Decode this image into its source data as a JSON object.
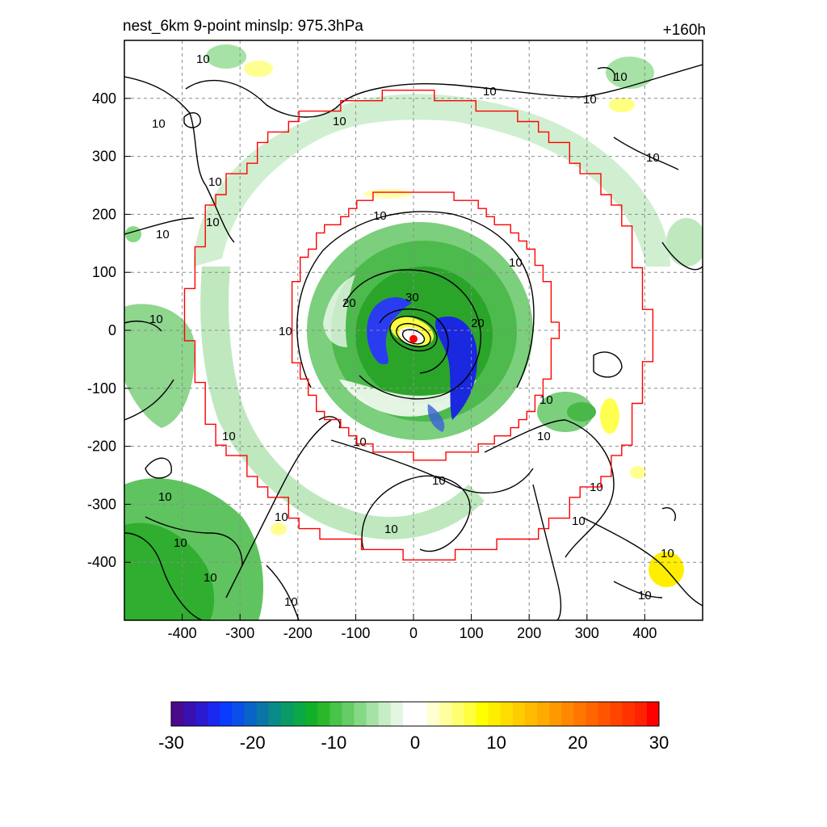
{
  "header": {
    "title_left": "nest_6km  9-point minslp: 975.3hPa",
    "title_right": "+160h"
  },
  "chart_data": {
    "type": "heatmap",
    "xlim": [
      -500,
      500
    ],
    "ylim": [
      -500,
      500
    ],
    "x_ticks": [
      -400,
      -300,
      -200,
      -100,
      0,
      100,
      200,
      300,
      400
    ],
    "y_ticks": [
      400,
      300,
      200,
      100,
      0,
      -100,
      -200,
      -300,
      -400
    ],
    "x_tick_labels": [
      "-400",
      "-300",
      "-200",
      "-100",
      "0",
      "100",
      "200",
      "300",
      "400"
    ],
    "y_tick_labels": [
      "400",
      "300",
      "200",
      "100",
      "0",
      "-100",
      "-200",
      "-300",
      "-400"
    ],
    "grid": "dashed",
    "colorbar": {
      "range": [
        -30,
        30
      ],
      "tick_values": [
        -30,
        -20,
        -10,
        0,
        10,
        20,
        30
      ],
      "tick_labels": [
        "-30",
        "-20",
        "-10",
        "0",
        "10",
        "20",
        "30"
      ],
      "colors": [
        "#4a0a8c",
        "#3a10b0",
        "#2a1ad0",
        "#1a28f0",
        "#0a3cff",
        "#0a50e8",
        "#0a64c8",
        "#0a76a8",
        "#0a8a88",
        "#0a9a66",
        "#0aa846",
        "#12b028",
        "#2ab82a",
        "#48c448",
        "#66cc66",
        "#86d886",
        "#a6e2a6",
        "#c6eec6",
        "#e2f6e2",
        "#ffffff",
        "#ffffff",
        "#ffffd0",
        "#ffffa0",
        "#ffff70",
        "#ffff40",
        "#ffff00",
        "#ffee00",
        "#ffdd00",
        "#ffcc00",
        "#ffbb00",
        "#ffaa00",
        "#ff9900",
        "#ff8800",
        "#ff7700",
        "#ff6600",
        "#ff5500",
        "#ff4400",
        "#ff3300",
        "#ff2200",
        "#ff0000"
      ]
    },
    "contour_labels": [
      "10",
      "20",
      "30"
    ],
    "center": {
      "x": 0,
      "y": -15
    },
    "colors": {
      "red_outline": "#ff0000",
      "contour": "#000000",
      "grid": "#8c8c8c"
    }
  }
}
